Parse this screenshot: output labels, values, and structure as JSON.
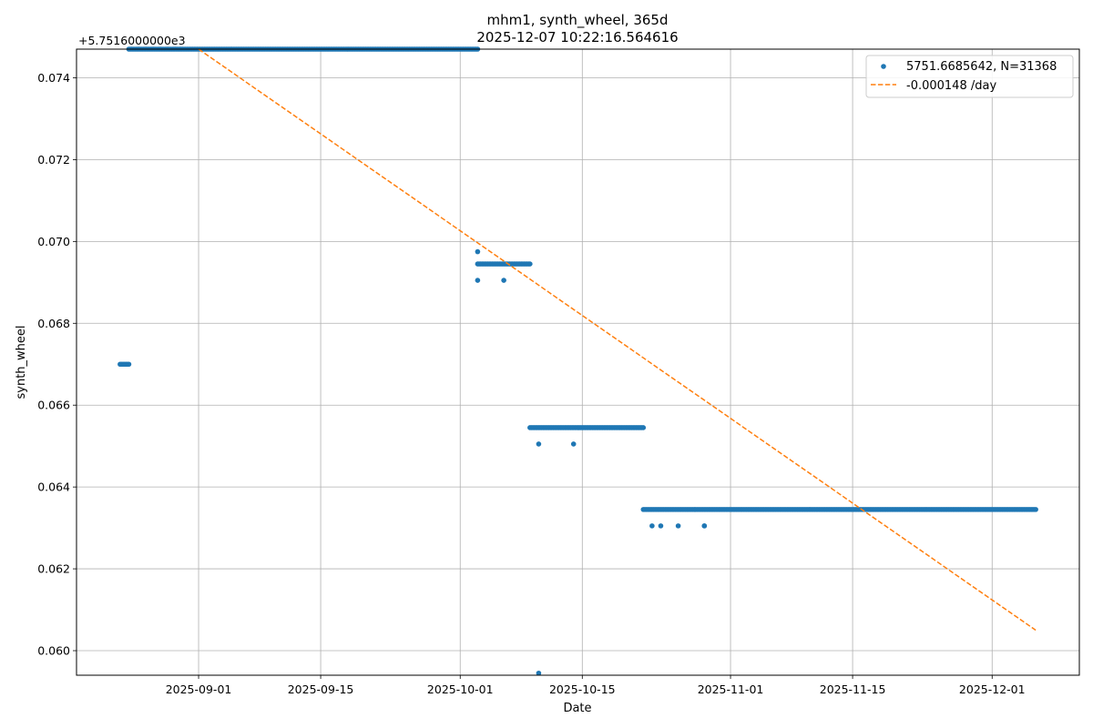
{
  "chart_data": {
    "type": "scatter",
    "title": "mhm1, synth_wheel, 365d",
    "subtitle": "2025-12-07 10:22:16.564616",
    "xlabel": "Date",
    "ylabel": "synth_wheel",
    "y_offset_label": "+5.7516000000e3",
    "xlim": [
      "2025-08-18",
      "2025-12-11"
    ],
    "ylim": [
      0.0594,
      0.0747
    ],
    "grid": true,
    "legend_position": "top-right",
    "x_ticks": [
      "2025-09-01",
      "2025-09-15",
      "2025-10-01",
      "2025-10-15",
      "2025-11-01",
      "2025-11-15",
      "2025-12-01"
    ],
    "y_ticks": [
      0.06,
      0.062,
      0.064,
      0.066,
      0.068,
      0.07,
      0.072,
      0.074
    ],
    "y_tick_labels": [
      "0.060",
      "0.062",
      "0.064",
      "0.066",
      "0.068",
      "0.070",
      "0.072",
      "0.074"
    ],
    "series": [
      {
        "name": "5751.6685642, N=31368",
        "kind": "scatter",
        "color": "#1f77b4",
        "segments": [
          {
            "x_start": "2025-08-23",
            "x_end": "2025-08-24",
            "y": 0.067
          },
          {
            "x_start": "2025-08-24",
            "x_end": "2025-10-03",
            "y": 0.0747
          },
          {
            "x_start": "2025-10-03",
            "x_end": "2025-10-09",
            "y": 0.06945
          },
          {
            "x_start": "2025-10-09",
            "x_end": "2025-10-22",
            "y": 0.06545
          },
          {
            "x_start": "2025-10-22",
            "x_end": "2025-12-06",
            "y": 0.06345
          }
        ],
        "points": [
          {
            "x": "2025-10-03",
            "y": 0.06975
          },
          {
            "x": "2025-10-03",
            "y": 0.06905
          },
          {
            "x": "2025-10-06",
            "y": 0.06905
          },
          {
            "x": "2025-10-10",
            "y": 0.06505
          },
          {
            "x": "2025-10-14",
            "y": 0.06505
          },
          {
            "x": "2025-10-10",
            "y": 0.05945
          },
          {
            "x": "2025-10-23",
            "y": 0.06305
          },
          {
            "x": "2025-10-24",
            "y": 0.06305
          },
          {
            "x": "2025-10-26",
            "y": 0.06305
          },
          {
            "x": "2025-10-29",
            "y": 0.06305
          },
          {
            "x": "2025-10-29",
            "y": 0.06305
          }
        ]
      },
      {
        "name": "-0.000148 /day",
        "kind": "line",
        "style": "dashed",
        "color": "#ff7f0e",
        "x": [
          "2025-09-01",
          "2025-12-06"
        ],
        "y": [
          0.0747,
          0.0605
        ]
      }
    ]
  }
}
